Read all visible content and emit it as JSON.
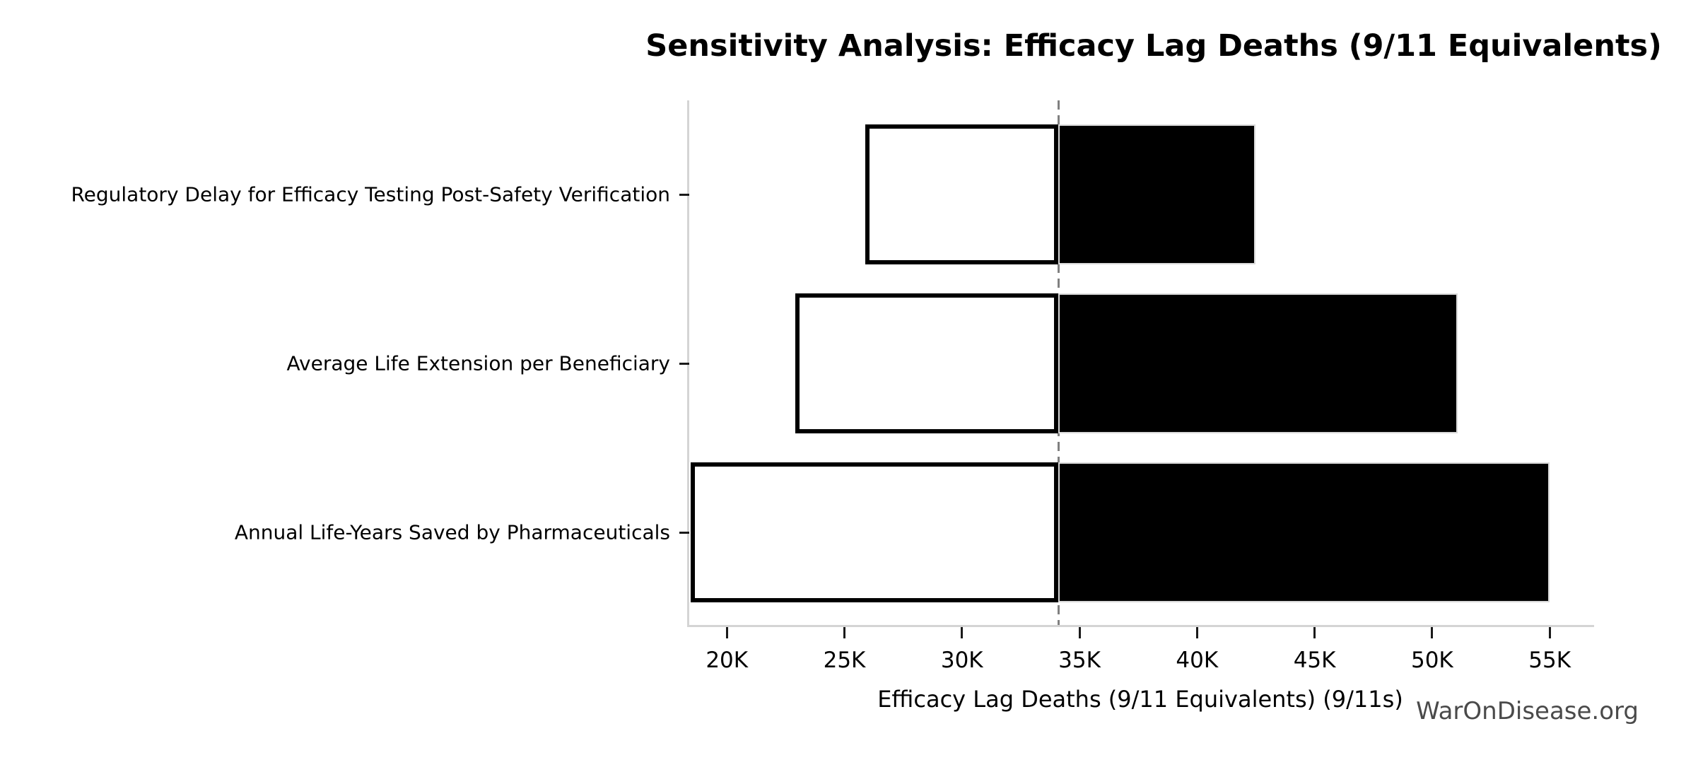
{
  "page": {
    "background_color": "#ffffff"
  },
  "watermark": {
    "text": "WarOnDisease.org",
    "color": "#4a4a4a"
  },
  "chart_data": {
    "type": "bar",
    "variant": "tornado-sensitivity",
    "orientation": "horizontal",
    "title": "Sensitivity Analysis: Efficacy Lag Deaths (9/11 Equivalents)",
    "xlabel": "Efficacy Lag Deaths (9/11 Equivalents) (9/11s)",
    "ylabel": "",
    "categories": [
      "Regulatory Delay for Efficacy Testing Post-Safety Verification",
      "Average Life Extension per Beneficiary",
      "Annual Life-Years Saved by Pharmaceuticals"
    ],
    "series": [
      {
        "name": "low_estimate",
        "values": [
          25900,
          22900,
          18450
        ]
      },
      {
        "name": "high_estimate",
        "values": [
          42500,
          51100,
          55000
        ]
      }
    ],
    "baseline": 34100,
    "xlim": [
      18400,
      56800
    ],
    "xticks": [
      20000,
      25000,
      30000,
      35000,
      40000,
      45000,
      50000,
      55000
    ],
    "xtick_labels": [
      "20K",
      "25K",
      "30K",
      "35K",
      "40K",
      "45K",
      "50K",
      "55K"
    ],
    "grid": false,
    "legend": "none",
    "notes": "White bars span from low_estimate to baseline; black bars span from baseline to high_estimate; dashed gray vertical line marks the baseline value.",
    "colors": {
      "low_bar_fill": "#ffffff",
      "low_bar_edge": "#000000",
      "high_bar_fill": "#000000",
      "baseline_line": "#808080",
      "spine": "#d4d4d4",
      "text": "#000000"
    }
  }
}
